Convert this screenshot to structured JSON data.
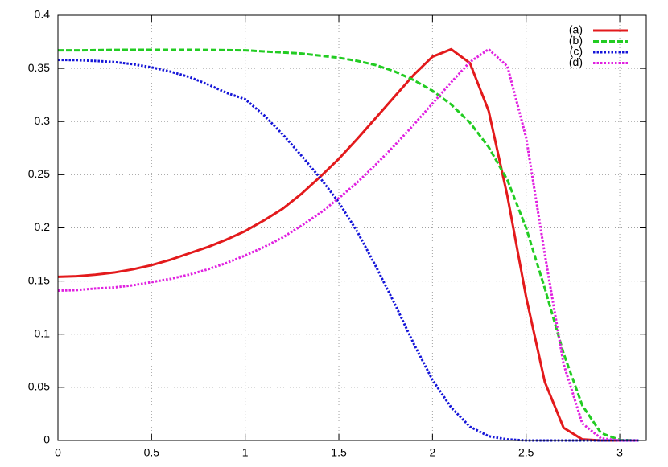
{
  "chart_data": {
    "type": "line",
    "x": [
      0,
      0.1,
      0.2,
      0.3,
      0.4,
      0.5,
      0.6,
      0.7,
      0.8,
      0.9,
      1.0,
      1.1,
      1.2,
      1.3,
      1.4,
      1.5,
      1.6,
      1.7,
      1.8,
      1.9,
      2.0,
      2.1,
      2.2,
      2.3,
      2.4,
      2.5,
      2.6,
      2.7,
      2.8,
      2.9,
      3.0,
      3.1
    ],
    "series": [
      {
        "name": "(a)",
        "color": "#e31a1c",
        "dash": "solid",
        "values": [
          0.154,
          0.1545,
          0.156,
          0.158,
          0.161,
          0.165,
          0.17,
          0.176,
          0.182,
          0.189,
          0.197,
          0.207,
          0.218,
          0.232,
          0.248,
          0.265,
          0.284,
          0.304,
          0.324,
          0.344,
          0.361,
          0.368,
          0.355,
          0.31,
          0.23,
          0.135,
          0.055,
          0.012,
          0.001,
          0,
          0,
          0
        ]
      },
      {
        "name": "(b)",
        "color": "#22cc22",
        "dash": "dashed",
        "values": [
          0.367,
          0.367,
          0.3672,
          0.3674,
          0.3675,
          0.3675,
          0.3675,
          0.3675,
          0.3674,
          0.3672,
          0.367,
          0.366,
          0.365,
          0.364,
          0.362,
          0.36,
          0.357,
          0.353,
          0.347,
          0.339,
          0.329,
          0.316,
          0.299,
          0.276,
          0.245,
          0.2,
          0.143,
          0.082,
          0.033,
          0.007,
          0.0005,
          0
        ]
      },
      {
        "name": "(c)",
        "color": "#1414d8",
        "dash": "dotted",
        "values": [
          0.358,
          0.3578,
          0.357,
          0.356,
          0.354,
          0.351,
          0.347,
          0.342,
          0.335,
          0.327,
          0.321,
          0.306,
          0.288,
          0.268,
          0.247,
          0.224,
          0.196,
          0.163,
          0.128,
          0.091,
          0.057,
          0.031,
          0.013,
          0.004,
          0.001,
          0,
          0,
          0,
          0,
          0,
          0,
          0
        ]
      },
      {
        "name": "(d)",
        "color": "#e020e0",
        "dash": "dotted",
        "values": [
          0.141,
          0.1415,
          0.143,
          0.144,
          0.146,
          0.149,
          0.152,
          0.156,
          0.161,
          0.167,
          0.174,
          0.182,
          0.191,
          0.202,
          0.214,
          0.228,
          0.243,
          0.26,
          0.278,
          0.297,
          0.317,
          0.337,
          0.356,
          0.368,
          0.352,
          0.285,
          0.175,
          0.072,
          0.016,
          0.002,
          0,
          0
        ]
      }
    ],
    "xlim": [
      0,
      3.14159
    ],
    "ylim": [
      0,
      0.4
    ],
    "xticks": [
      0,
      0.5,
      1,
      1.5,
      2,
      2.5,
      3
    ],
    "yticks": [
      0,
      0.05,
      0.1,
      0.15,
      0.2,
      0.25,
      0.3,
      0.35,
      0.4
    ],
    "grid": true,
    "legend": "top-right"
  }
}
